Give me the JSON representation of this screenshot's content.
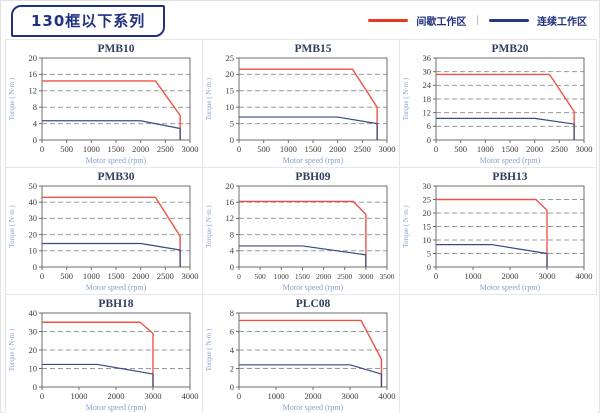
{
  "header": {
    "title": "130框以下系列",
    "legend": {
      "separator": "|",
      "items": [
        {
          "name": "间歇工作区",
          "color": "#e8391d"
        },
        {
          "name": "连续工作区",
          "color": "#24377f"
        }
      ]
    }
  },
  "colors": {
    "chart_title": "#2e3f5e",
    "tick_label": "#3c3c3c",
    "axis_label": "#84a3cc",
    "grid_line": "#9a9a9a",
    "plot_border": "#6e6e6e",
    "red_curve": "#ef5343",
    "blue_curve": "#394b85",
    "cell_border": "#e4e7ec"
  },
  "chart_data": [
    {
      "type": "line",
      "title": "PMB10",
      "xlabel": "Motor speed (rpm)",
      "ylabel": "Torque ( N·m )",
      "xlim": [
        0,
        3000
      ],
      "xtick_step": 500,
      "ylim": [
        0,
        20
      ],
      "ytick_step": 4,
      "grid": "horizontal-dashed",
      "legend_position": "none",
      "series": [
        {
          "name": "间歇工作区",
          "color": "#ef5343",
          "points": [
            [
              0,
              14.4
            ],
            [
              2300,
              14.4
            ],
            [
              2800,
              6
            ],
            [
              2800,
              0
            ]
          ]
        },
        {
          "name": "连续工作区",
          "color": "#394b85",
          "points": [
            [
              0,
              4.7
            ],
            [
              2000,
              4.7
            ],
            [
              2800,
              2.8
            ],
            [
              2800,
              0
            ]
          ]
        }
      ]
    },
    {
      "type": "line",
      "title": "PMB15",
      "xlabel": "Motor speed (rpm)",
      "ylabel": "Torque ( N·m )",
      "xlim": [
        0,
        3000
      ],
      "xtick_step": 500,
      "ylim": [
        0,
        25
      ],
      "ytick_step": 5,
      "grid": "horizontal-dashed",
      "legend_position": "none",
      "series": [
        {
          "name": "间歇工作区",
          "color": "#ef5343",
          "points": [
            [
              0,
              21.6
            ],
            [
              2300,
              21.6
            ],
            [
              2800,
              10
            ],
            [
              2800,
              0
            ]
          ]
        },
        {
          "name": "连续工作区",
          "color": "#394b85",
          "points": [
            [
              0,
              7
            ],
            [
              2000,
              7
            ],
            [
              2800,
              5
            ],
            [
              2800,
              0
            ]
          ]
        }
      ]
    },
    {
      "type": "line",
      "title": "PMB20",
      "xlabel": "Motor speed (rpm)",
      "ylabel": "Torque ( N·m )",
      "xlim": [
        0,
        3000
      ],
      "xtick_step": 500,
      "ylim": [
        0,
        36
      ],
      "ytick_step": 6,
      "grid": "horizontal-dashed",
      "legend_position": "none",
      "series": [
        {
          "name": "间歇工作区",
          "color": "#ef5343",
          "points": [
            [
              0,
              28.8
            ],
            [
              2300,
              28.8
            ],
            [
              2800,
              12.5
            ],
            [
              2800,
              0
            ]
          ]
        },
        {
          "name": "连续工作区",
          "color": "#394b85",
          "points": [
            [
              0,
              9.5
            ],
            [
              2000,
              9.5
            ],
            [
              2800,
              7
            ],
            [
              2800,
              0
            ]
          ]
        }
      ]
    },
    {
      "type": "line",
      "title": "PMB30",
      "xlabel": "Motor speed (rpm)",
      "ylabel": "Torque ( N·m )",
      "xlim": [
        0,
        3000
      ],
      "xtick_step": 500,
      "ylim": [
        0,
        50
      ],
      "ytick_step": 10,
      "grid": "horizontal-dashed",
      "legend_position": "none",
      "series": [
        {
          "name": "间歇工作区",
          "color": "#ef5343",
          "points": [
            [
              0,
              43
            ],
            [
              2300,
              43
            ],
            [
              2800,
              19
            ],
            [
              2800,
              0
            ]
          ]
        },
        {
          "name": "连续工作区",
          "color": "#394b85",
          "points": [
            [
              0,
              14.5
            ],
            [
              2000,
              14.5
            ],
            [
              2800,
              10.5
            ],
            [
              2800,
              0
            ]
          ]
        }
      ]
    },
    {
      "type": "line",
      "title": "PBH09",
      "xlabel": "Motor speed (rpm)",
      "ylabel": "Torque ( N·m )",
      "xlim": [
        0,
        3500
      ],
      "xtick_step": 500,
      "ylim": [
        0,
        20
      ],
      "ytick_step": 4,
      "grid": "horizontal-dashed",
      "legend_position": "none",
      "series": [
        {
          "name": "间歇工作区",
          "color": "#ef5343",
          "points": [
            [
              0,
              16.2
            ],
            [
              2700,
              16.2
            ],
            [
              3000,
              13
            ],
            [
              3000,
              0
            ]
          ]
        },
        {
          "name": "连续工作区",
          "color": "#394b85",
          "points": [
            [
              0,
              5.2
            ],
            [
              1500,
              5.2
            ],
            [
              3000,
              3
            ],
            [
              3000,
              0
            ]
          ]
        }
      ]
    },
    {
      "type": "line",
      "title": "PBH13",
      "xlabel": "Motor speed (rpm)",
      "ylabel": "Torque ( N·m )",
      "xlim": [
        0,
        4000
      ],
      "xtick_step": 1000,
      "ylim": [
        0,
        30
      ],
      "ytick_step": 5,
      "grid": "horizontal-dashed",
      "legend_position": "none",
      "series": [
        {
          "name": "间歇工作区",
          "color": "#ef5343",
          "points": [
            [
              0,
              25
            ],
            [
              2700,
              25
            ],
            [
              3000,
              21
            ],
            [
              3000,
              0
            ]
          ]
        },
        {
          "name": "连续工作区",
          "color": "#394b85",
          "points": [
            [
              0,
              8.3
            ],
            [
              1500,
              8.3
            ],
            [
              3000,
              5
            ],
            [
              3000,
              0
            ]
          ]
        }
      ]
    },
    {
      "type": "line",
      "title": "PBH18",
      "xlabel": "Motor speed (rpm)",
      "ylabel": "Torque ( N·m )",
      "xlim": [
        0,
        4000
      ],
      "xtick_step": 1000,
      "ylim": [
        0,
        40
      ],
      "ytick_step": 10,
      "grid": "horizontal-dashed",
      "legend_position": "none",
      "series": [
        {
          "name": "间歇工作区",
          "color": "#ef5343",
          "points": [
            [
              0,
              35
            ],
            [
              2650,
              35
            ],
            [
              3000,
              29
            ],
            [
              3000,
              0
            ]
          ]
        },
        {
          "name": "连续工作区",
          "color": "#394b85",
          "points": [
            [
              0,
              12.2
            ],
            [
              1500,
              12.2
            ],
            [
              3000,
              7
            ],
            [
              3000,
              0
            ]
          ]
        }
      ]
    },
    {
      "type": "line",
      "title": "PLC08",
      "xlabel": "Motor speed (rpm)",
      "ylabel": "Torque ( N·m )",
      "xlim": [
        0,
        4000
      ],
      "xtick_step": 1000,
      "ylim": [
        0,
        8
      ],
      "ytick_step": 2,
      "grid": "horizontal-dashed",
      "legend_position": "none",
      "series": [
        {
          "name": "间歇工作区",
          "color": "#ef5343",
          "points": [
            [
              0,
              7.2
            ],
            [
              3300,
              7.2
            ],
            [
              3850,
              3
            ],
            [
              3850,
              0
            ]
          ]
        },
        {
          "name": "连续工作区",
          "color": "#394b85",
          "points": [
            [
              0,
              2.4
            ],
            [
              3000,
              2.4
            ],
            [
              3850,
              1.4
            ],
            [
              3850,
              0
            ]
          ]
        }
      ]
    }
  ]
}
